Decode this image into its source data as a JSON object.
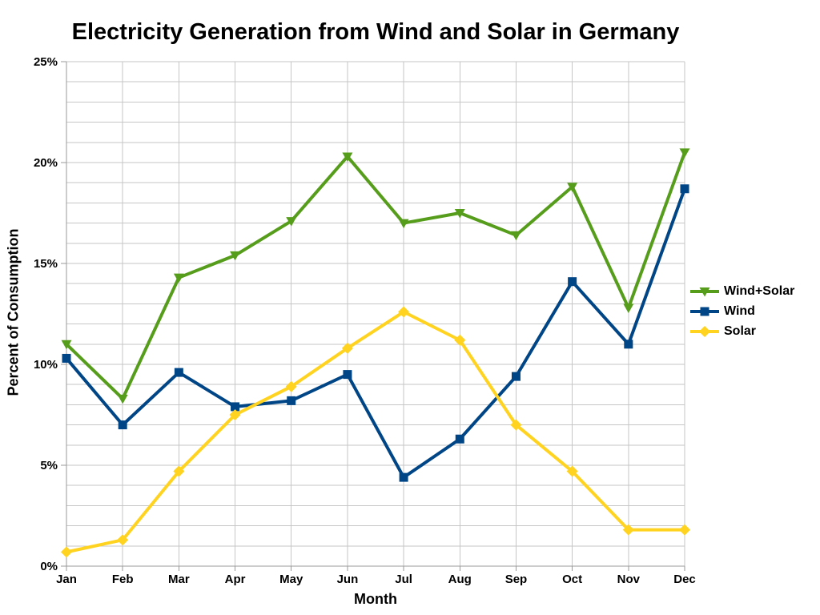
{
  "page": {
    "background": "#ffffff"
  },
  "chart_data": {
    "type": "line",
    "title": "Electricity Generation from Wind and Solar in Germany",
    "xlabel": "Month",
    "ylabel": "Percent of Consumption",
    "categories": [
      "Jan",
      "Feb",
      "Mar",
      "Apr",
      "May",
      "Jun",
      "Jul",
      "Aug",
      "Sep",
      "Oct",
      "Nov",
      "Dec"
    ],
    "ylim": [
      0,
      25
    ],
    "ytick_interval": 5,
    "minor_grid_interval": 1,
    "ytick_labels": [
      "0%",
      "5%",
      "10%",
      "15%",
      "20%",
      "25%"
    ],
    "grid": true,
    "legend_position": "right",
    "colors": {
      "grid": "#c6c6c6",
      "axis": "#9a9a9a",
      "text": "#000000"
    },
    "series": [
      {
        "name": "Wind+Solar",
        "color": "#579D1C",
        "marker": "triangle-down",
        "values": [
          11.0,
          8.3,
          14.3,
          15.4,
          17.1,
          20.3,
          17.0,
          17.5,
          16.4,
          18.8,
          12.8,
          20.5
        ]
      },
      {
        "name": "Wind",
        "color": "#004586",
        "marker": "square",
        "values": [
          10.3,
          7.0,
          9.6,
          7.9,
          8.2,
          9.5,
          4.4,
          6.3,
          9.4,
          14.1,
          11.0,
          18.7
        ]
      },
      {
        "name": "Solar",
        "color": "#FFD320",
        "marker": "diamond",
        "values": [
          0.7,
          1.3,
          4.7,
          7.5,
          8.9,
          10.8,
          12.6,
          11.2,
          7.0,
          4.7,
          1.8,
          1.8
        ]
      }
    ]
  }
}
